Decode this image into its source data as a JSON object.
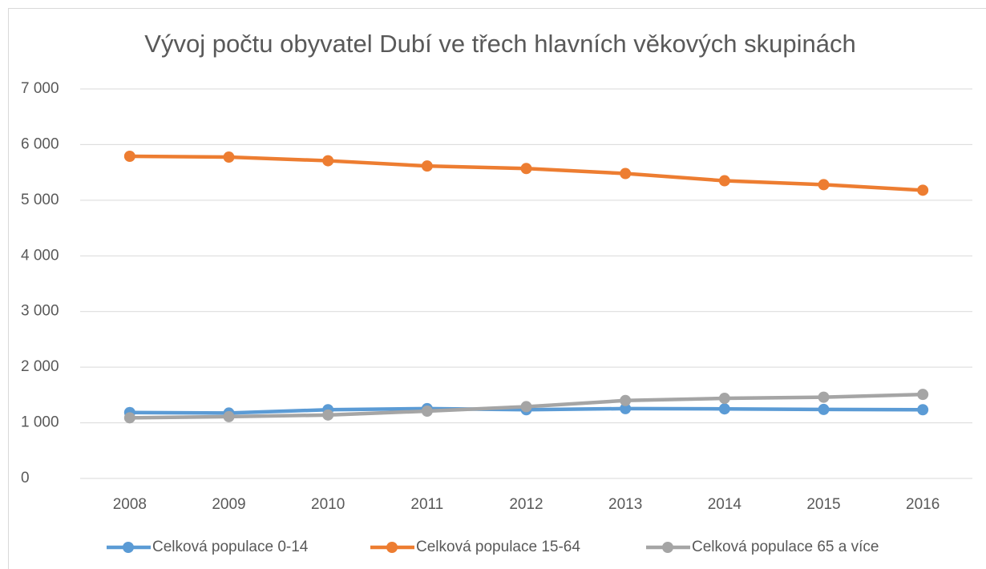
{
  "chart_data": {
    "type": "line",
    "title": "Vývoj počtu obyvatel Dubí ve třech hlavních věkových skupinách",
    "categories": [
      "2008",
      "2009",
      "2010",
      "2011",
      "2012",
      "2013",
      "2014",
      "2015",
      "2016"
    ],
    "series": [
      {
        "name": "Celková populace 0-14",
        "color": "#5b9bd5",
        "values": [
          1185,
          1175,
          1235,
          1255,
          1235,
          1255,
          1250,
          1240,
          1235
        ]
      },
      {
        "name": "Celková populace 15-64",
        "color": "#ed7d31",
        "values": [
          5790,
          5775,
          5710,
          5615,
          5570,
          5480,
          5350,
          5280,
          5180
        ]
      },
      {
        "name": "Celková populace 65 a více",
        "color": "#a5a5a5",
        "values": [
          1090,
          1110,
          1140,
          1210,
          1290,
          1400,
          1440,
          1460,
          1510
        ]
      }
    ],
    "ylim": [
      0,
      7000
    ],
    "yticks": [
      0,
      {
        "value": 1000,
        "label": "1 000"
      },
      {
        "value": 2000,
        "label": "2 000"
      },
      {
        "value": 3000,
        "label": "3 000"
      },
      {
        "value": 4000,
        "label": "4 000"
      },
      {
        "value": 5000,
        "label": "5 000"
      },
      {
        "value": 6000,
        "label": "6 000"
      },
      {
        "value": 7000,
        "label": "7 000"
      }
    ],
    "grid": true,
    "legend": "bottom"
  }
}
